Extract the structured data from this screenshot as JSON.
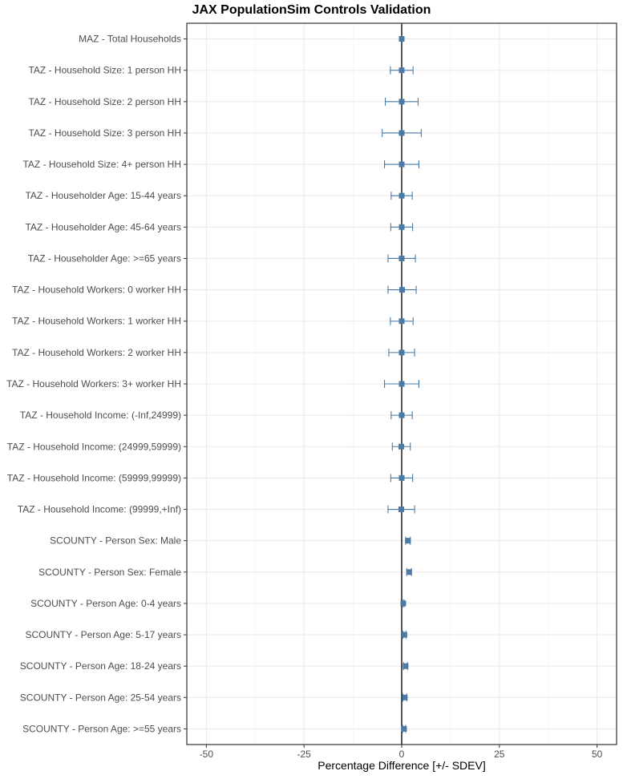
{
  "chart_data": {
    "type": "errorbar",
    "title": "JAX PopulationSim Controls Validation",
    "xlabel": "Percentage Difference [+/- SDEV]",
    "ylabel": "",
    "xlim": [
      -55,
      55
    ],
    "xticks": [
      -50,
      -25,
      0,
      25,
      50
    ],
    "xtick_labels": [
      "-50",
      "-25",
      "0",
      "25",
      "50"
    ],
    "grid": true,
    "color": "#4a7ba6",
    "categories": [
      "MAZ - Total Households",
      "TAZ - Household Size: 1 person HH",
      "TAZ - Household Size: 2 person HH",
      "TAZ - Household Size: 3 person HH",
      "TAZ - Household Size: 4+ person HH",
      "TAZ - Householder Age: 15-44 years",
      "TAZ - Householder Age: 45-64 years",
      "TAZ - Householder Age: >=65 years",
      "TAZ - Household Workers: 0 worker HH",
      "TAZ - Household Workers: 1 worker HH",
      "TAZ - Household Workers: 2 worker HH",
      "TAZ - Household Workers: 3+ worker HH",
      "TAZ - Household Income: (-Inf,24999)",
      "TAZ - Household Income: (24999,59999)",
      "TAZ - Household Income: (59999,99999)",
      "TAZ - Household Income: (99999,+Inf)",
      "SCOUNTY - Person Sex: Male",
      "SCOUNTY - Person Sex: Female",
      "SCOUNTY - Person Age: 0-4 years",
      "SCOUNTY - Person Age: 5-17 years",
      "SCOUNTY - Person Age: 18-24 years",
      "SCOUNTY - Person Age: 25-54 years",
      "SCOUNTY - Person Age: >=55 years"
    ],
    "mean": [
      0.0,
      0.0,
      0.0,
      0.0,
      0.0,
      0.0,
      0.0,
      0.0,
      0.1,
      0.0,
      0.0,
      0.0,
      0.0,
      -0.1,
      0.0,
      -0.1,
      1.6,
      1.9,
      0.4,
      0.7,
      1.0,
      0.8,
      0.6
    ],
    "sdev": [
      0.0,
      2.9,
      4.2,
      5.0,
      4.4,
      2.7,
      2.8,
      3.5,
      3.6,
      2.9,
      3.3,
      4.4,
      2.7,
      2.3,
      2.8,
      3.4,
      0.6,
      0.6,
      0.2,
      0.4,
      0.5,
      0.5,
      0.4
    ]
  }
}
